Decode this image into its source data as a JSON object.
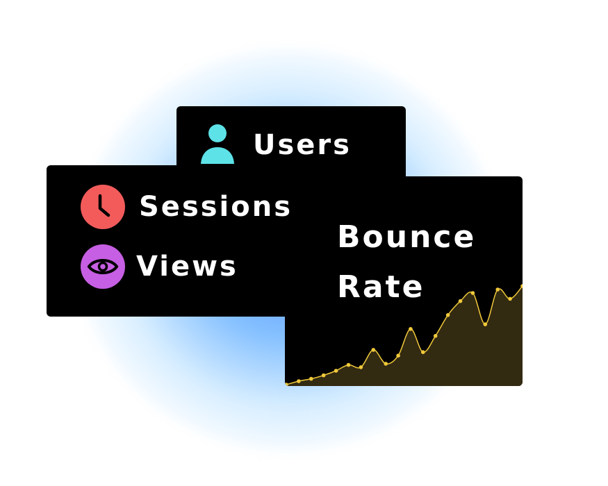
{
  "metrics": {
    "users": {
      "label": "Users",
      "icon": "user-icon",
      "color": "#5de2e7"
    },
    "sessions": {
      "label": "Sessions",
      "icon": "clock-icon",
      "color": "#f35b5b"
    },
    "views": {
      "label": "Views",
      "icon": "eye-icon",
      "color": "#c65fe3"
    }
  },
  "bounce": {
    "title_line1": "Bounce",
    "title_line2": "Rate"
  },
  "colors": {
    "card": "#000000",
    "line": "#f0c93a",
    "fill": "#332a12"
  },
  "chart_data": {
    "type": "area",
    "values": [
      0,
      3,
      5,
      8,
      12,
      17,
      15,
      30,
      18,
      25,
      48,
      28,
      42,
      60,
      72,
      79,
      52,
      82,
      74,
      85
    ]
  }
}
